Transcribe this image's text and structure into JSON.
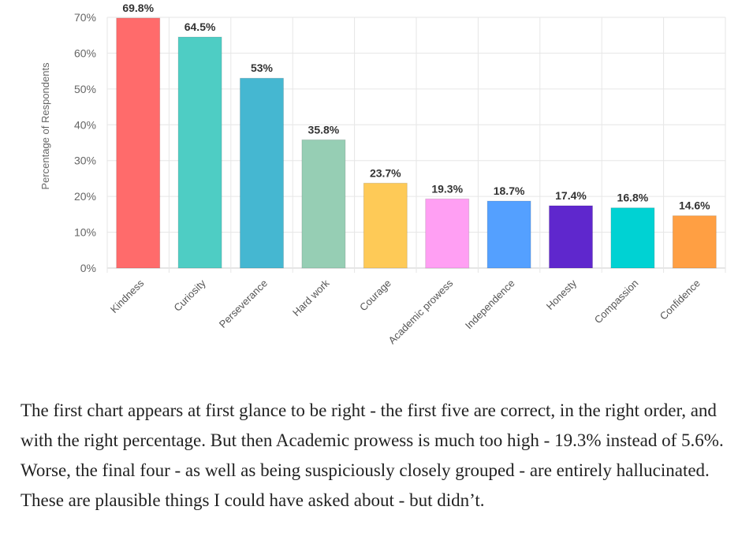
{
  "chart_data": {
    "type": "bar",
    "ylabel": "Percentage of Respondents",
    "ylim": [
      0,
      70
    ],
    "yticks": [
      0,
      10,
      20,
      30,
      40,
      50,
      60,
      70
    ],
    "ytick_labels": [
      "0%",
      "10%",
      "20%",
      "30%",
      "40%",
      "50%",
      "60%",
      "70%"
    ],
    "grid": true,
    "categories": [
      "Kindness",
      "Curiosity",
      "Perseverance",
      "Hard work",
      "Courage",
      "Academic prowess",
      "Independence",
      "Honesty",
      "Compassion",
      "Confidence"
    ],
    "values": [
      69.8,
      64.5,
      53,
      35.8,
      23.7,
      19.3,
      18.7,
      17.4,
      16.8,
      14.6
    ],
    "data_labels": [
      "69.8%",
      "64.5%",
      "53%",
      "35.8%",
      "23.7%",
      "19.3%",
      "18.7%",
      "17.4%",
      "16.8%",
      "14.6%"
    ],
    "colors": [
      "#ff6b6b",
      "#4ecdc4",
      "#45b7d1",
      "#96ceb4",
      "#feca57",
      "#ff9ff3",
      "#54a0ff",
      "#5f27cd",
      "#00d2d3",
      "#ff9f43"
    ]
  },
  "caption": "The first chart appears at first glance to be right - the first five are correct, in the right order, and with the right percentage. But then Academic prowess is much too high - 19.3% instead of 5.6%. Worse, the final four - as well as being suspiciously closely grouped - are entirely hallucinated. These are plausible things I could have asked about - but didn’t."
}
